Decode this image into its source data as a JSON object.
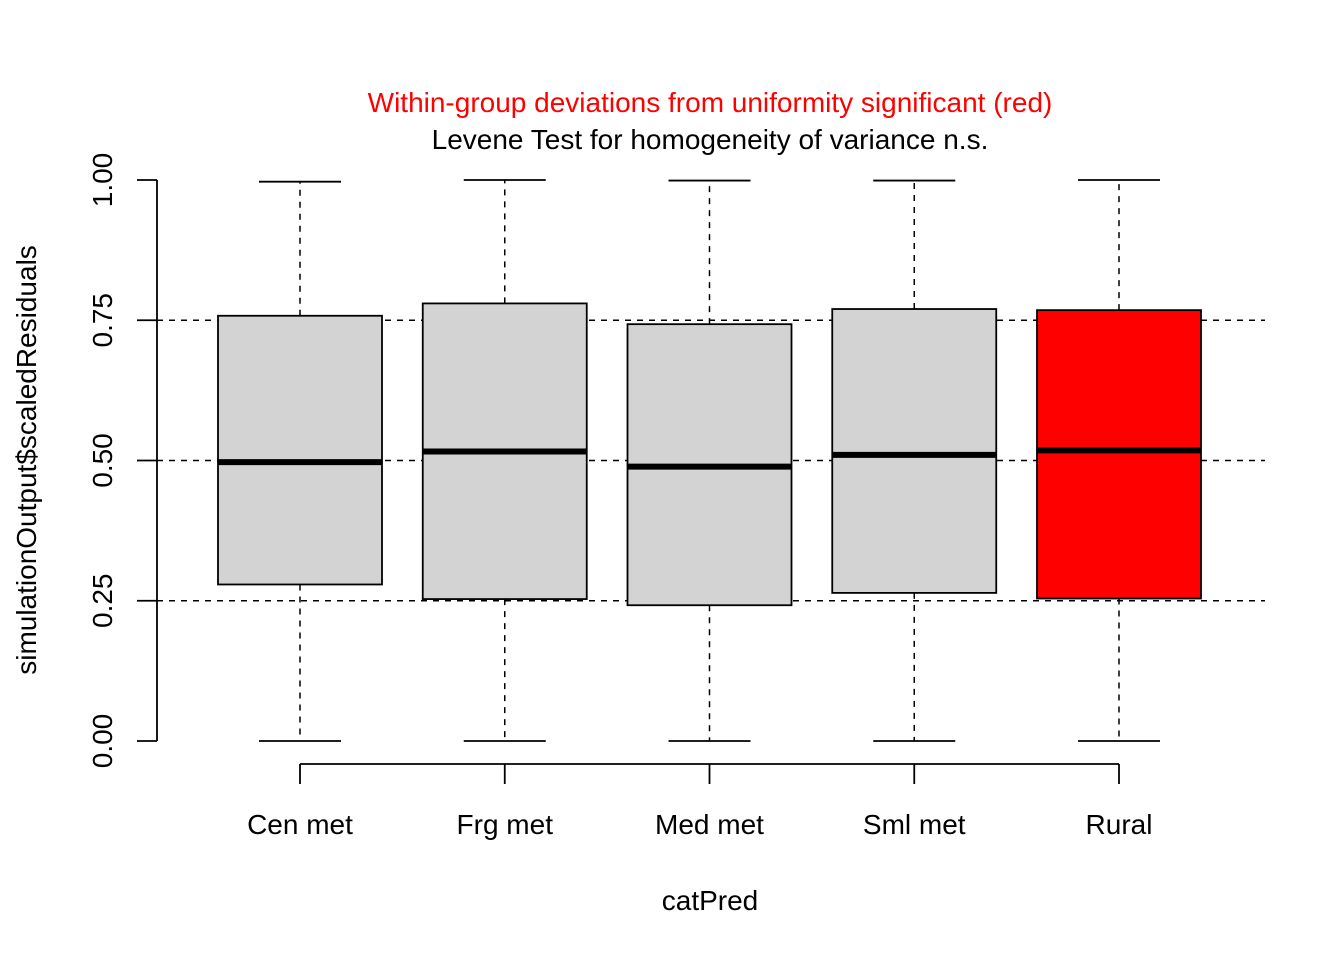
{
  "chart_data": {
    "type": "boxplot",
    "title": "Within-group deviations from uniformity significant (red)",
    "subtitle": "Levene Test for homogeneity of variance n.s.",
    "xlabel": "catPred",
    "ylabel": "simulationOutput$scaledResiduals",
    "ylim": [
      0,
      1
    ],
    "y_ticks": [
      "0.00",
      "0.25",
      "0.50",
      "0.75",
      "1.00"
    ],
    "y_tick_values": [
      0,
      0.25,
      0.5,
      0.75,
      1.0
    ],
    "reference_lines": [
      0.25,
      0.5,
      0.75
    ],
    "categories": [
      "Cen met",
      "Frg met",
      "Med met",
      "Sml met",
      "Rural"
    ],
    "boxes": [
      {
        "category": "Cen met",
        "min": 0.0,
        "q1": 0.279,
        "median": 0.497,
        "q3": 0.758,
        "max": 0.997,
        "highlight": false
      },
      {
        "category": "Frg met",
        "min": 0.0,
        "q1": 0.253,
        "median": 0.516,
        "q3": 0.78,
        "max": 1.0,
        "highlight": false
      },
      {
        "category": "Med met",
        "min": 0.0,
        "q1": 0.242,
        "median": 0.489,
        "q3": 0.743,
        "max": 0.999,
        "highlight": false
      },
      {
        "category": "Sml met",
        "min": 0.0,
        "q1": 0.264,
        "median": 0.51,
        "q3": 0.77,
        "max": 0.999,
        "highlight": false
      },
      {
        "category": "Rural",
        "min": 0.0,
        "q1": 0.254,
        "median": 0.518,
        "q3": 0.768,
        "max": 1.0,
        "highlight": true
      }
    ],
    "colors": {
      "box_fill": "#d3d3d3",
      "highlight_fill": "#ff0000",
      "title_red": "#ff0000",
      "line": "#000000"
    },
    "grid": false
  }
}
